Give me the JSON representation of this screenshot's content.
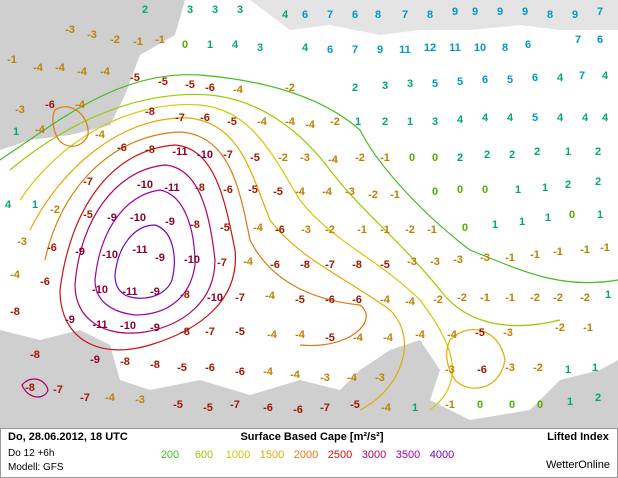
{
  "header": {
    "date": "Do, 28.06.2012, 18 UTC",
    "run": "Do 12 +6h",
    "model": "Modell: GFS"
  },
  "legend": {
    "title": "Surface Based Cape [m²/s²]",
    "levels": [
      200,
      600,
      1000,
      1500,
      2000,
      2500,
      3000,
      3500,
      4000
    ],
    "colors": [
      "#44bb22",
      "#99cc00",
      "#d6c800",
      "#e6a800",
      "#e07a10",
      "#cc1010",
      "#b0006a",
      "#a000a8",
      "#7a00c0"
    ]
  },
  "product": "Lifted Index",
  "brand": "WetterOnline",
  "map_labels": [
    2,
    3,
    3,
    3,
    4,
    6,
    7,
    6,
    8,
    7,
    8,
    9,
    9,
    9,
    9,
    8,
    9,
    7,
    0,
    1,
    4,
    3,
    4,
    6,
    7,
    9,
    11,
    12,
    11,
    10,
    8,
    6,
    7,
    6,
    -3,
    -3,
    -2,
    -1,
    -1,
    -1,
    -4,
    -4,
    -4,
    -4,
    -5,
    -5,
    -5,
    -6,
    -4,
    -2,
    2,
    3,
    3,
    5,
    5,
    6,
    5,
    6,
    4,
    7,
    4,
    -3,
    -6,
    -4,
    -8,
    -7,
    -6,
    -5,
    -4,
    -4,
    -4,
    -2,
    1,
    2,
    1,
    3,
    4,
    4,
    4,
    5,
    4,
    4,
    4,
    -4,
    1,
    -4,
    -6,
    -8,
    -11,
    -10,
    -7,
    -5,
    -2,
    -3,
    -4,
    -2,
    -1,
    0,
    0,
    2,
    2,
    2,
    2,
    1,
    2,
    -7,
    -10,
    -11,
    -8,
    -6,
    -5,
    -5,
    -4,
    -4,
    -3,
    -2,
    -1,
    0,
    0,
    0,
    1,
    1,
    2,
    2,
    4,
    1,
    -2,
    -5,
    -9,
    -10,
    -9,
    -8,
    -5,
    -4,
    -6,
    -3,
    -2,
    -1,
    -1,
    -2,
    -1,
    0,
    1,
    1,
    1,
    0,
    1,
    -3,
    -6,
    -9,
    -10,
    -11,
    -9,
    -10,
    -7,
    -4,
    -6,
    -8,
    -7,
    -8,
    -5,
    -3,
    -3,
    -3,
    -3,
    -1,
    -1,
    -1,
    -1,
    -1,
    -4,
    -6,
    -10,
    -11,
    -9,
    -8,
    -10,
    -7,
    -4,
    -5,
    -6,
    -6,
    -4,
    -4,
    -2,
    -2,
    -1,
    -1,
    -2,
    -2,
    -2,
    1,
    -8,
    -9,
    -11,
    -10,
    -9,
    -8,
    -7,
    -5,
    -4,
    -4,
    -5,
    -4,
    -4,
    -4,
    -4,
    -5,
    -3,
    -2,
    -1,
    -8,
    -9,
    -8,
    -8,
    -5,
    -6,
    -6,
    -4,
    -4,
    -3,
    -4,
    -3,
    -3,
    -6,
    -3,
    -2,
    1,
    1,
    -8,
    -7,
    -7,
    -4,
    -3,
    -5,
    -5,
    -7,
    -6,
    -6,
    -7,
    -5,
    -4,
    1,
    -1,
    0,
    0,
    0,
    1,
    2
  ]
}
